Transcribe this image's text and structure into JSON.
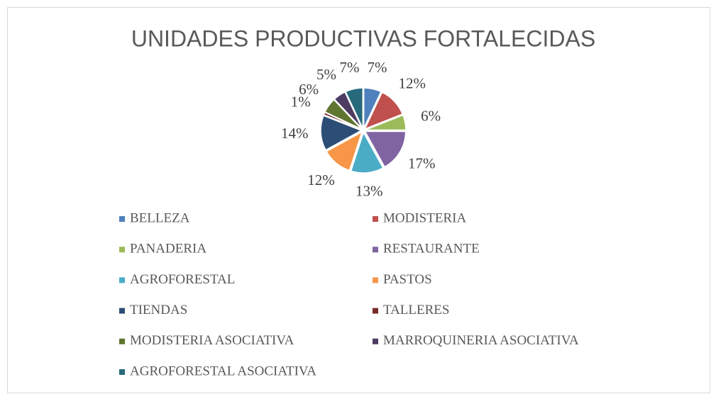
{
  "chart_data": {
    "type": "pie",
    "title": "UNIDADES PRODUCTIVAS FORTALECIDAS",
    "categories": [
      "BELLEZA",
      "MODISTERIA",
      "PANADERIA",
      "RESTAURANTE",
      "AGROFORESTAL",
      "PASTOS",
      "TIENDAS",
      "TALLERES",
      "MODISTERIA ASOCIATIVA",
      "MARROQUINERIA ASOCIATIVA",
      "AGROFORESTAL  ASOCIATIVA"
    ],
    "values": [
      7,
      12,
      6,
      17,
      13,
      12,
      14,
      1,
      6,
      5,
      7
    ],
    "value_labels": [
      "7%",
      "12%",
      "6%",
      "17%",
      "13%",
      "12%",
      "14%",
      "1%",
      "6%",
      "5%",
      "7%"
    ],
    "colors": [
      "#4f81bd",
      "#c0504d",
      "#9bbb59",
      "#8064a2",
      "#4bacc6",
      "#f79646",
      "#2c4d75",
      "#772c2a",
      "#5f7530",
      "#4d3b62",
      "#276a7c"
    ],
    "legend": "bottom"
  }
}
